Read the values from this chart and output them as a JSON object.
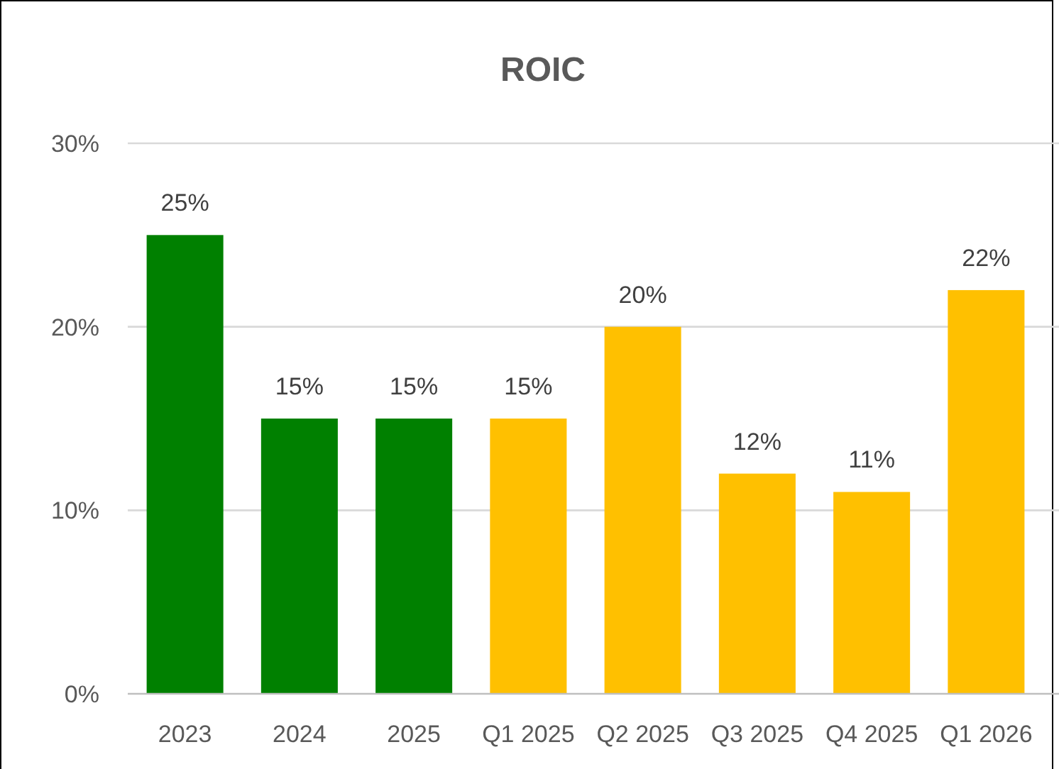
{
  "chart_data": {
    "type": "bar",
    "title": "ROIC",
    "categories": [
      "2023",
      "2024",
      "2025",
      "Q1 2025",
      "Q2 2025",
      "Q3 2025",
      "Q4 2025",
      "Q1 2026"
    ],
    "values": [
      25,
      15,
      15,
      15,
      20,
      12,
      11,
      22
    ],
    "colors": [
      "#008000",
      "#008000",
      "#008000",
      "#ffc000",
      "#ffc000",
      "#ffc000",
      "#ffc000",
      "#ffc000"
    ],
    "value_labels": [
      "25%",
      "15%",
      "15%",
      "15%",
      "20%",
      "12%",
      "11%",
      "22%"
    ],
    "ylim": [
      0,
      30
    ],
    "yticks": [
      {
        "value": 0,
        "label": "0%"
      },
      {
        "value": 10,
        "label": "10%"
      },
      {
        "value": 20,
        "label": "20%"
      },
      {
        "value": 30,
        "label": "30%"
      }
    ],
    "grid": "y"
  }
}
